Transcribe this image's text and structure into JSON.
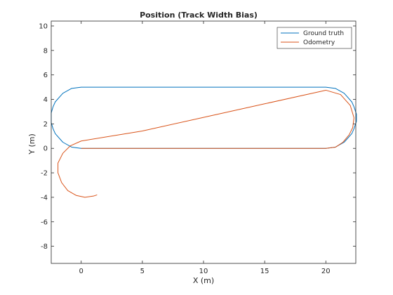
{
  "chart_data": {
    "type": "line",
    "title": "Position (Track Width Bias)",
    "xlabel": "X (m)",
    "ylabel": "Y (m)",
    "xlim": [
      -2.45,
      22.45
    ],
    "ylim": [
      -9.4,
      10.4
    ],
    "xticks": [
      0,
      5,
      10,
      15,
      20
    ],
    "yticks": [
      -8,
      -6,
      -4,
      -2,
      0,
      2,
      4,
      6,
      8,
      10
    ],
    "grid": false,
    "legend_position": "top-right",
    "series": [
      {
        "name": "Ground truth",
        "color": "#0072BD",
        "x": [
          0,
          5,
          10,
          15,
          20,
          20.78,
          21.5,
          22.12,
          22.3,
          22.5,
          22.5,
          22.5,
          22.3,
          22.12,
          21.5,
          20.78,
          20,
          15,
          10,
          5,
          0,
          -0.78,
          -1.5,
          -2.12,
          -2.3,
          -2.45,
          -2.45,
          -2.45,
          -2.3,
          -2.12,
          -1.5,
          -0.78,
          0
        ],
        "y": [
          0,
          0,
          0,
          0,
          0,
          0.1,
          0.5,
          1.2,
          1.6,
          2.2,
          2.5,
          2.8,
          3.4,
          3.8,
          4.5,
          4.9,
          5,
          5,
          5,
          5,
          5,
          4.9,
          4.5,
          3.8,
          3.4,
          2.9,
          2.5,
          2.1,
          1.6,
          1.2,
          0.5,
          0.1,
          0
        ]
      },
      {
        "name": "Odometry",
        "color": "#D95319",
        "x": [
          0,
          5,
          10,
          15,
          20,
          20.8,
          21.4,
          21.9,
          22.2,
          22.3,
          22.0,
          21.2,
          20.0,
          15,
          10,
          5,
          0,
          -0.9,
          -1.5,
          -1.9,
          -1.9,
          -1.6,
          -1.1,
          -0.4,
          0.3,
          1.0,
          1.3
        ],
        "y": [
          0,
          0,
          0,
          0,
          0,
          0.1,
          0.5,
          1.1,
          1.7,
          2.5,
          3.5,
          4.4,
          4.75,
          3.64,
          2.53,
          1.42,
          0.6,
          0.2,
          -0.4,
          -1.2,
          -2.0,
          -2.8,
          -3.45,
          -3.85,
          -4.0,
          -3.9,
          -3.8
        ]
      }
    ]
  }
}
